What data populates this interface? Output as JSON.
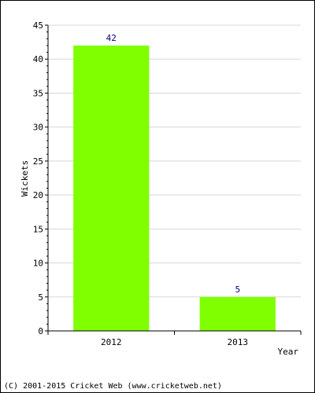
{
  "chart_data": {
    "type": "bar",
    "categories": [
      "2012",
      "2013"
    ],
    "values": [
      42,
      5
    ],
    "value_labels": [
      "42",
      "5"
    ],
    "xlabel": "Year",
    "ylabel": "Wickets",
    "ylim": [
      0,
      45
    ],
    "yticks": [
      "0",
      "5",
      "10",
      "15",
      "20",
      "25",
      "30",
      "35",
      "40",
      "45"
    ],
    "grid": true,
    "bar_color": "#80ff00",
    "value_label_color": "#000080"
  },
  "footer": {
    "copyright": "(C) 2001-2015 Cricket Web (www.cricketweb.net)"
  }
}
